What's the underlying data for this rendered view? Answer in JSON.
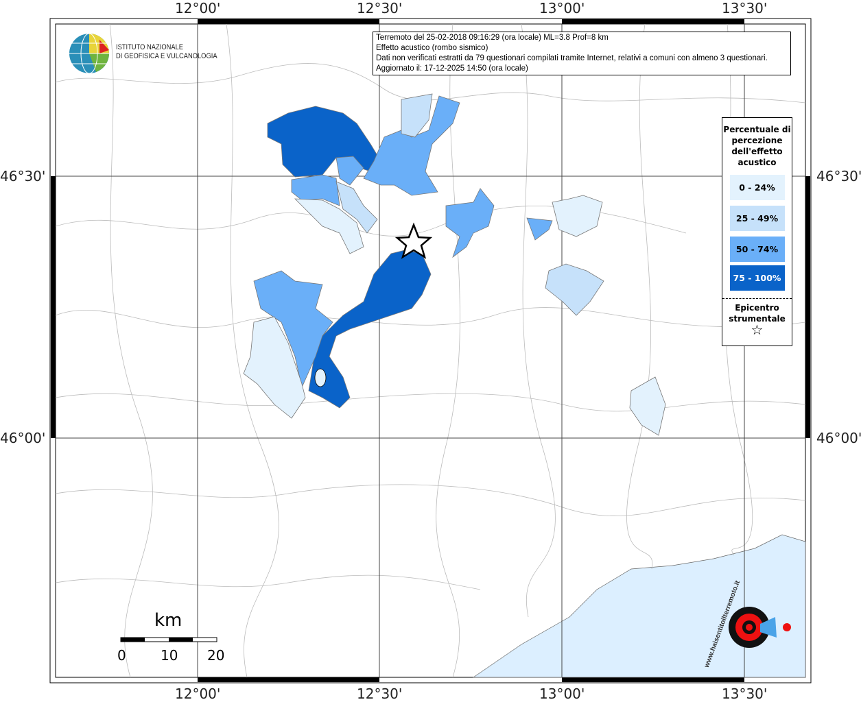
{
  "info": {
    "line1": "Terremoto del 25-02-2018 09:16:29 (ora locale) ML=3.8 Prof=8 km",
    "line2": "Effetto acustico (rombo sismico)",
    "line3": "Dati non verificati estratti da 79 questionari compilati tramite Internet, relativi a comuni con almeno 3 questionari.",
    "line4": "Aggiornato il: 17-12-2025 14:50 (ora locale)"
  },
  "logo": {
    "line1": "ISTITUTO NAZIONALE",
    "line2": "DI GEOFISICA E VULCANOLOGIA"
  },
  "watermark": "www.haisentitoilterremoto.it",
  "axes": {
    "lon": [
      "12°00'",
      "12°30'",
      "13°00'",
      "13°30'"
    ],
    "lat": [
      "46°30'",
      "46°00'"
    ]
  },
  "legend": {
    "title": "Percentuale di percezione dell'effetto acustico",
    "classes": [
      {
        "label": "0 - 24%",
        "color": "#e3f2fd"
      },
      {
        "label": "25 - 49%",
        "color": "#c6e1fa"
      },
      {
        "label": "50 - 74%",
        "color": "#6aaff8"
      },
      {
        "label": "75 - 100%",
        "color": "#0a63c9"
      }
    ],
    "epicenter": "Epicentro strumentale",
    "epicenter_icon": "star-icon"
  },
  "scale": {
    "unit": "km",
    "ticks": [
      "0",
      "10",
      "20"
    ]
  },
  "colors": {
    "sea": "#dcefff"
  }
}
